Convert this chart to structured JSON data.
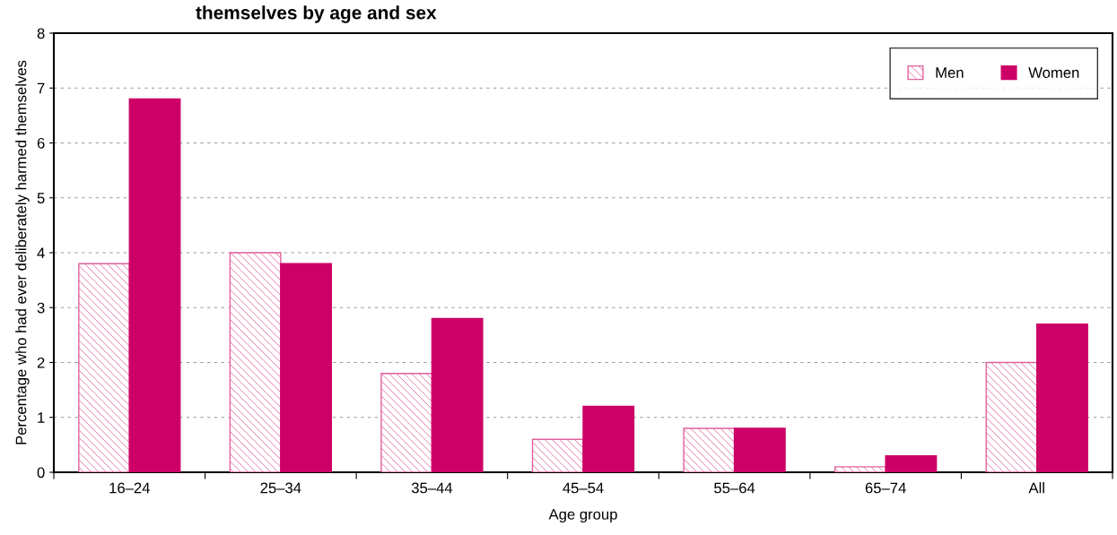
{
  "chart_data": {
    "type": "bar",
    "title": "themselves by age and sex",
    "xlabel": "Age group",
    "ylabel": "Percentage who had ever deliberately harmed themselves",
    "categories": [
      "16–24",
      "25–34",
      "35–44",
      "45–54",
      "55–64",
      "65–74",
      "All"
    ],
    "series": [
      {
        "name": "Men",
        "color": "#e0609c",
        "values": [
          3.8,
          4.0,
          1.8,
          0.6,
          0.8,
          0.1,
          2.0
        ]
      },
      {
        "name": "Women",
        "color": "#cc0066",
        "values": [
          6.8,
          3.8,
          2.8,
          1.2,
          0.8,
          0.3,
          2.7
        ]
      }
    ],
    "ylim": [
      0,
      8
    ],
    "yticks": [
      0,
      1,
      2,
      3,
      4,
      5,
      6,
      7,
      8
    ],
    "grid": "y",
    "legend": "top right"
  }
}
